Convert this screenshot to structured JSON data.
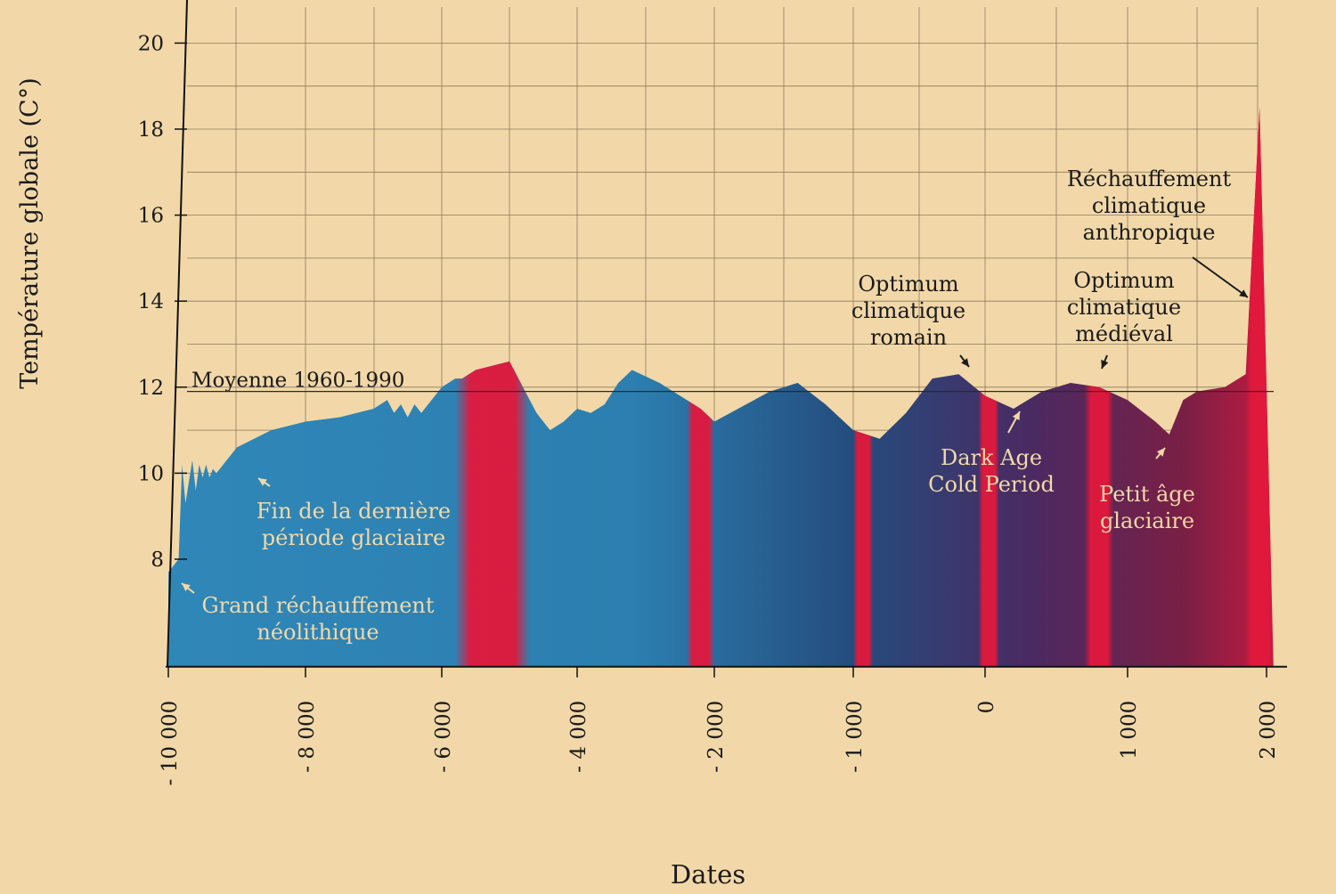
{
  "chart_data": {
    "type": "area",
    "title": "",
    "xlabel": "Dates",
    "ylabel": "Température globale (C°)",
    "xlim": [
      -10000,
      2200
    ],
    "ylim": [
      5.5,
      20.5
    ],
    "x_ticks": [
      -10000,
      -8000,
      -6000,
      -4000,
      -2000,
      -1000,
      0,
      1000,
      2000
    ],
    "x_tick_labels": [
      "- 10 000",
      "- 8 000",
      "- 6 000",
      "- 4 000",
      "- 2 000",
      "- 1 000",
      "0",
      "1 000",
      "2 000"
    ],
    "y_ticks": [
      8,
      10,
      12,
      14,
      16,
      18,
      20
    ],
    "grid": true,
    "reference_line": {
      "label": "Moyenne 1960-1990",
      "y": 11.9
    },
    "series": [
      {
        "x": [
          -10000,
          -9850,
          -9800,
          -9750,
          -9700,
          -9650,
          -9600,
          -9550,
          -9500,
          -9450,
          -9400,
          -9350,
          -9300,
          -9000,
          -8500,
          -8000,
          -7500,
          -7000,
          -6800,
          -6700,
          -6600,
          -6500,
          -6400,
          -6300,
          -6200,
          -6000,
          -5800,
          -5700,
          -5500,
          -5000,
          -4600,
          -4400,
          -4200,
          -4000,
          -3800,
          -3600,
          -3400,
          -3200,
          -2800,
          -2400,
          -2200,
          -2000,
          -1600,
          -1400,
          -1200,
          -1000,
          -800,
          -600,
          -400,
          -200,
          0,
          200,
          400,
          600,
          800,
          1000,
          1200,
          1300,
          1400,
          1500,
          1700,
          1850,
          1950,
          2000,
          2050
        ],
        "y": [
          7.7,
          8.0,
          10.2,
          9.3,
          9.8,
          10.3,
          9.6,
          10.2,
          9.9,
          10.2,
          9.9,
          10.1,
          10.0,
          10.6,
          11.0,
          11.2,
          11.3,
          11.5,
          11.7,
          11.4,
          11.6,
          11.3,
          11.6,
          11.4,
          11.6,
          12.0,
          12.2,
          12.2,
          12.4,
          12.6,
          11.4,
          11.0,
          11.2,
          11.5,
          11.4,
          11.6,
          12.1,
          12.4,
          12.1,
          11.7,
          11.5,
          11.2,
          11.9,
          12.1,
          11.6,
          11.0,
          10.8,
          11.4,
          12.2,
          12.3,
          11.8,
          11.5,
          11.9,
          12.1,
          12.0,
          11.7,
          11.2,
          10.9,
          11.7,
          11.9,
          12.0,
          12.3,
          18.5,
          12.0,
          5.5
        ]
      }
    ],
    "bands_warm": [
      [
        -5800,
        -4700
      ],
      [
        -2400,
        -2000
      ],
      [
        -1000,
        -850
      ],
      [
        -50,
        100
      ],
      [
        700,
        900
      ],
      [
        1850,
        2050
      ]
    ],
    "annotations": [
      {
        "key": "grand",
        "lines": [
          "Grand réchauffement",
          "néolithique"
        ],
        "x": -9900,
        "y": 7.85
      },
      {
        "key": "fin",
        "lines": [
          "Fin de la dernière",
          "période glaciaire"
        ],
        "x": -9050,
        "y": 9.9
      },
      {
        "key": "romain",
        "lines": [
          "Optimum",
          "climatique",
          "romain"
        ],
        "x": -120,
        "y": 12.35
      },
      {
        "key": "dark",
        "lines": [
          "Dark Age",
          "Cold Period"
        ],
        "x": 350,
        "y": 11.3
      },
      {
        "key": "medieval",
        "lines": [
          "Optimum",
          "climatique",
          "médiéval"
        ],
        "x": 860,
        "y": 12.25
      },
      {
        "key": "petit",
        "lines": [
          "Petit âge",
          "glaciaire"
        ],
        "x": 1480,
        "y": 10.5
      },
      {
        "key": "anthro",
        "lines": [
          "Réchauffement",
          "climatique",
          "anthropique"
        ],
        "x": 1900,
        "y": 13.8
      }
    ]
  }
}
